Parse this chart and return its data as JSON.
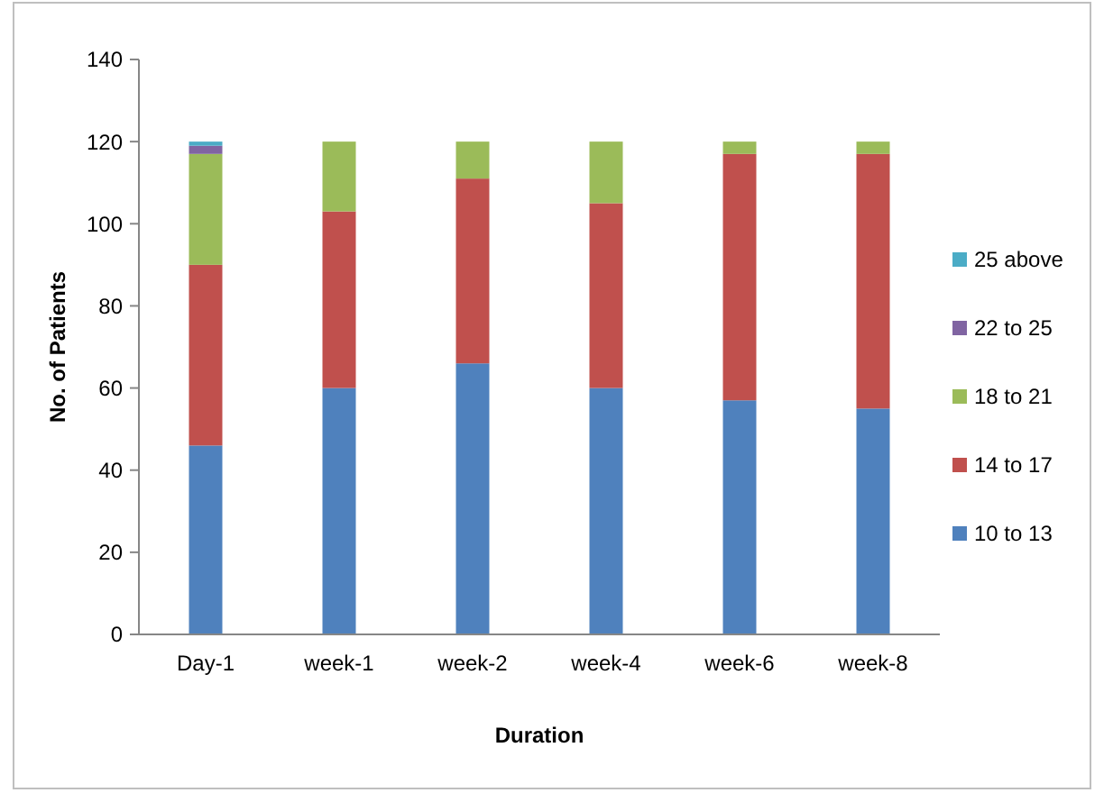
{
  "chart_data": {
    "type": "bar",
    "stacked": true,
    "xlabel": "Duration",
    "ylabel": "No. of Patients",
    "categories": [
      "Day-1",
      "week-1",
      "week-2",
      "week-4",
      "week-6",
      "week-8"
    ],
    "series": [
      {
        "name": "10 to 13",
        "color": "#4f81bd",
        "values": [
          46,
          60,
          66,
          60,
          57,
          55
        ]
      },
      {
        "name": "14 to 17",
        "color": "#c0504d",
        "values": [
          44,
          43,
          45,
          45,
          60,
          62
        ]
      },
      {
        "name": "18 to 21",
        "color": "#9bbb59",
        "values": [
          27,
          17,
          9,
          15,
          3,
          3
        ]
      },
      {
        "name": "22 to 25",
        "color": "#8064a2",
        "values": [
          2,
          0,
          0,
          0,
          0,
          0
        ]
      },
      {
        "name": "25 above",
        "color": "#4bacc6",
        "values": [
          1,
          0,
          0,
          0,
          0,
          0
        ]
      }
    ],
    "ylim": [
      0,
      140
    ],
    "yticks": [
      0,
      20,
      40,
      60,
      80,
      100,
      120,
      140
    ],
    "legend": "right"
  }
}
